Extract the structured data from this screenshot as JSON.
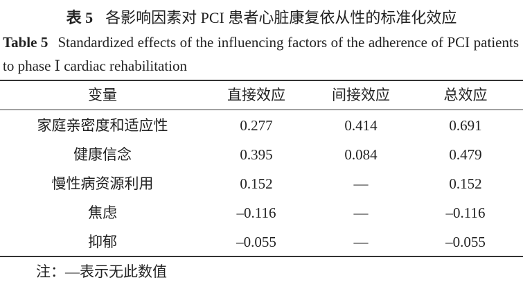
{
  "caption": {
    "zh_label": "表 5",
    "zh_title": "各影响因素对 PCI 患者心脏康复依从性的标准化效应",
    "en_label": "Table 5",
    "en_title": "Standardized effects of the influencing factors of the adherence of PCI patients to phase Ⅰ cardiac rehabilitation"
  },
  "table": {
    "header": [
      "变量",
      "直接效应",
      "间接效应",
      "总效应"
    ],
    "rows": [
      [
        "家庭亲密度和适应性",
        "0.277",
        "0.414",
        "0.691"
      ],
      [
        "健康信念",
        "0.395",
        "0.084",
        "0.479"
      ],
      [
        "慢性病资源利用",
        "0.152",
        "—",
        "0.152"
      ],
      [
        "焦虑",
        "–0.116",
        "—",
        "–0.116"
      ],
      [
        "抑郁",
        "–0.055",
        "—",
        "–0.055"
      ]
    ]
  },
  "note": "注：—表示无此数值"
}
